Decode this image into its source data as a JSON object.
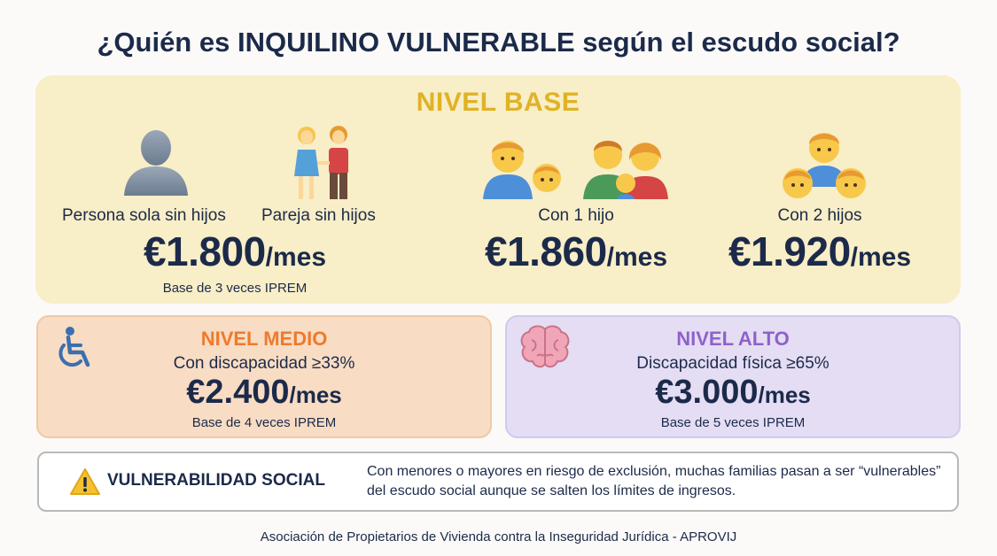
{
  "title": {
    "part1": "¿Quién es ",
    "part2": "INQUILINO VULNERABLE",
    "part3": " según el escudo social?"
  },
  "base": {
    "title": "NIVEL BASE",
    "columns": [
      {
        "labels": [
          "Persona sola sin hijos",
          "Pareja sin hijos"
        ],
        "amount": "€1.800",
        "unit": "/mes",
        "note": "Base de 3 veces IPREM"
      },
      {
        "label": "Con 1 hijo",
        "amount": "€1.860",
        "unit": "/mes"
      },
      {
        "label": "Con 2 hijos",
        "amount": "€1.920",
        "unit": "/mes"
      }
    ]
  },
  "medio": {
    "title": "NIVEL MEDIO",
    "condition": "Con discapacidad ≥33%",
    "amount": "€2.400",
    "unit": "/mes",
    "note": "Base de 4 veces IPREM",
    "icon": "wheelchair-icon",
    "title_color": "#ee7a2d"
  },
  "alto": {
    "title": "NIVEL ALTO",
    "condition": "Discapacidad física ≥65%",
    "amount": "€3.000",
    "unit": "/mes",
    "note": "Base de 5 veces IPREM",
    "icon": "brain-icon",
    "title_color": "#8e62c9"
  },
  "social": {
    "label": "VULNERABILIDAD SOCIAL",
    "description": "Con menores o mayores en riesgo de exclusión, muchas familias pasan a ser “vulnerables” del escudo social aunque se salten los límites de ingresos.",
    "icon": "warning-icon"
  },
  "footer": "Asociación de Propietarios de Vivienda contra la Inseguridad Jurídica - APROVIJ",
  "colors": {
    "navy": "#1c2a4a",
    "base_bg": "#f8eec7",
    "base_title": "#e0b225",
    "medio_bg": "#f8dcc3",
    "alto_bg": "#e4ddf4"
  }
}
